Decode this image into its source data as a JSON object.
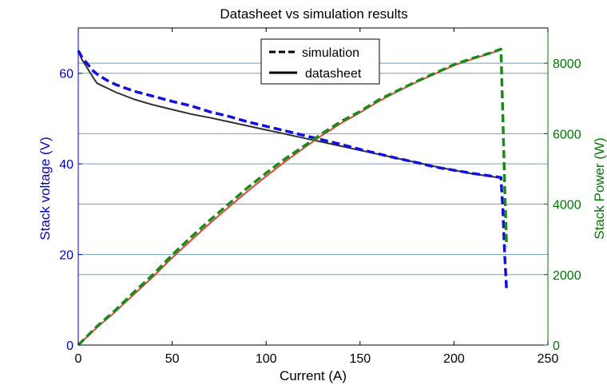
{
  "chart_data": {
    "type": "line",
    "title": "Datasheet vs simulation results",
    "xlabel": "Current (A)",
    "ylabel_left": "Stack voltage (V)",
    "ylabel_right": "Stack Power (W)",
    "xlim": [
      0,
      250
    ],
    "ylim_left": [
      0,
      70
    ],
    "ylim_right": [
      0,
      9000
    ],
    "x_ticks": [
      0,
      50,
      100,
      150,
      200,
      250
    ],
    "y_left_ticks": [
      0,
      20,
      40,
      60
    ],
    "y_right_ticks": [
      0,
      2000,
      4000,
      6000,
      8000
    ],
    "grid": "horizontal",
    "legend_position": "top-center",
    "legend": [
      {
        "label": "simulation",
        "style": "dashed"
      },
      {
        "label": "datasheet",
        "style": "solid"
      }
    ],
    "colors": {
      "left_axis": "#0000c8",
      "right_axis": "#007800",
      "grid": "#6fa0bc",
      "voltage_sim": "#1010e0",
      "voltage_datasheet": "#303030",
      "power_sim": "#1a8a1a",
      "power_datasheet": "#e04a3a"
    },
    "series": [
      {
        "name": "simulation",
        "axis": "left",
        "quantity": "voltage",
        "style": "dashed",
        "x": [
          0,
          2,
          5,
          8,
          10,
          15,
          20,
          30,
          40,
          50,
          60,
          70,
          80,
          90,
          100,
          110,
          120,
          130,
          140,
          150,
          160,
          170,
          180,
          190,
          200,
          210,
          220,
          225,
          226,
          227,
          228
        ],
        "y": [
          65,
          63.5,
          62,
          60.5,
          59.8,
          58.5,
          57.5,
          56,
          54.9,
          53.8,
          52.8,
          51.5,
          50.5,
          49.3,
          48.3,
          47.3,
          46.3,
          45.3,
          44.3,
          43.2,
          42.2,
          41.2,
          40.3,
          39.3,
          38.6,
          37.9,
          37.3,
          37.0,
          30,
          20,
          12
        ]
      },
      {
        "name": "datasheet",
        "axis": "left",
        "quantity": "voltage",
        "style": "solid",
        "x": [
          0,
          2,
          5,
          8,
          10,
          15,
          20,
          30,
          40,
          50,
          60,
          70,
          80,
          90,
          100,
          110,
          120,
          130,
          140,
          150,
          160,
          170,
          180,
          190,
          200,
          210,
          220,
          225
        ],
        "y": [
          65,
          63,
          61,
          59,
          57.8,
          56.8,
          55.8,
          54.2,
          53,
          52,
          51,
          50.2,
          49.3,
          48.4,
          47.5,
          46.6,
          45.7,
          44.8,
          43.9,
          43,
          42.1,
          41.2,
          40.3,
          39.4,
          38.6,
          37.8,
          37.2,
          36.9
        ]
      },
      {
        "name": "simulation",
        "axis": "right",
        "quantity": "power",
        "style": "dashed",
        "x": [
          0,
          10,
          20,
          30,
          40,
          50,
          60,
          70,
          80,
          90,
          100,
          110,
          120,
          130,
          140,
          150,
          160,
          170,
          180,
          190,
          200,
          210,
          220,
          225,
          226,
          227,
          228
        ],
        "y": [
          0,
          530,
          1000,
          1520,
          2010,
          2560,
          3060,
          3540,
          4000,
          4460,
          4880,
          5280,
          5640,
          6010,
          6350,
          6630,
          6960,
          7220,
          7480,
          7720,
          7960,
          8140,
          8300,
          8400,
          6500,
          4500,
          2800
        ]
      },
      {
        "name": "datasheet",
        "axis": "right",
        "quantity": "power",
        "style": "solid",
        "x": [
          0,
          10,
          20,
          30,
          40,
          50,
          60,
          70,
          80,
          90,
          100,
          110,
          120,
          130,
          140,
          150,
          160,
          170,
          180,
          190,
          200,
          210,
          220,
          225
        ],
        "y": [
          0,
          500,
          960,
          1460,
          1950,
          2480,
          2970,
          3450,
          3910,
          4360,
          4790,
          5200,
          5590,
          5960,
          6300,
          6600,
          6920,
          7200,
          7460,
          7700,
          7940,
          8120,
          8290,
          8380
        ]
      }
    ]
  }
}
